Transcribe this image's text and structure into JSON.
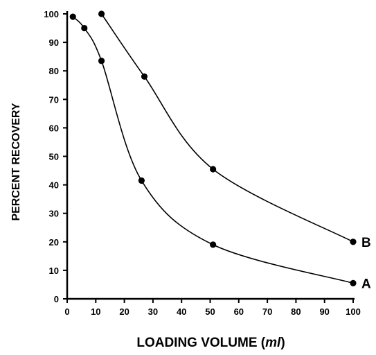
{
  "chart_data": {
    "type": "line",
    "title": "",
    "xlabel": "LOADING VOLUME (ml)",
    "xlabel_main": "LOADING VOLUME (",
    "xlabel_unit": "ml",
    "xlabel_close": ")",
    "ylabel": "PERCENT RECOVERY",
    "xlim": [
      0,
      100
    ],
    "ylim": [
      0,
      100
    ],
    "xticks": [
      0,
      10,
      20,
      30,
      40,
      50,
      60,
      70,
      80,
      90,
      100
    ],
    "yticks": [
      0,
      10,
      20,
      30,
      40,
      50,
      60,
      70,
      80,
      90,
      100
    ],
    "grid": false,
    "series": [
      {
        "name": "A",
        "x": [
          2,
          6,
          12,
          26,
          51,
          100
        ],
        "y": [
          99,
          95,
          83.5,
          41.5,
          19,
          5.5
        ]
      },
      {
        "name": "B",
        "x": [
          12,
          27,
          51,
          100
        ],
        "y": [
          100,
          78,
          45.5,
          20
        ]
      }
    ],
    "colors": {
      "line": "#000000",
      "marker": "#000000",
      "background": "#ffffff"
    }
  }
}
